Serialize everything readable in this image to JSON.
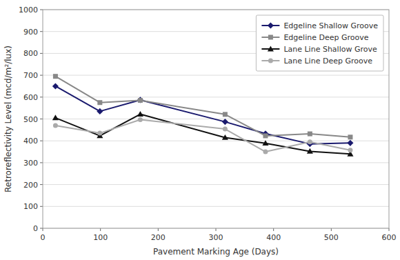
{
  "chart_data": {
    "type": "line",
    "xlabel": "Pavement Marking Age (Days)",
    "ylabel": "Retroreflectivity Level (mcd/m²/lux)",
    "x": [
      22,
      99,
      169,
      316,
      386,
      463,
      533
    ],
    "xlim": [
      0,
      600
    ],
    "ylim": [
      0,
      1000
    ],
    "xticks": [
      0,
      100,
      200,
      300,
      400,
      500,
      600
    ],
    "yticks": [
      0,
      100,
      200,
      300,
      400,
      500,
      600,
      700,
      800,
      900,
      1000
    ],
    "grid": true,
    "legend": "upper right",
    "series": [
      {
        "name": "Edgeline Shallow Groove",
        "color": "#1a1a6e",
        "marker": "diamond",
        "line_style": "solid",
        "values": [
          650,
          535,
          587,
          487,
          433,
          386,
          390
        ]
      },
      {
        "name": "Edgeline Deep Groove",
        "color": "#888888",
        "marker": "square",
        "line_style": "solid",
        "values": [
          695,
          575,
          585,
          521,
          423,
          432,
          417
        ]
      },
      {
        "name": "Lane Line Shallow Grove",
        "color": "#111111",
        "marker": "triangle",
        "line_style": "solid",
        "values": [
          505,
          423,
          522,
          415,
          389,
          352,
          340
        ]
      },
      {
        "name": "Lane Line Deep Groove",
        "color": "#aaaaaa",
        "marker": "circle",
        "line_style": "solid",
        "values": [
          470,
          435,
          497,
          454,
          350,
          395,
          357
        ]
      }
    ]
  }
}
